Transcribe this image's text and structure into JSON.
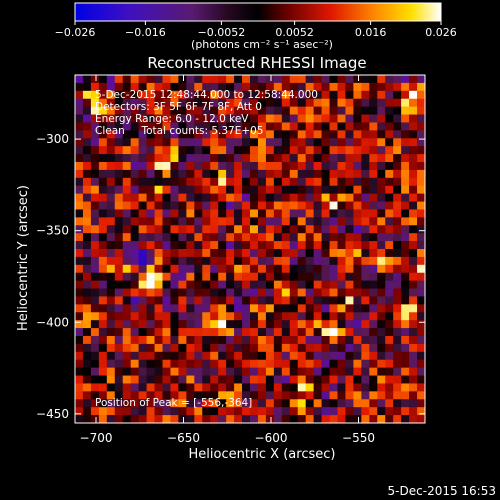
{
  "chart_data": {
    "type": "heatmap",
    "title": "Reconstructed RHESSI Image",
    "xlabel": "Heliocentric X (arcsec)",
    "ylabel": "Heliocentric Y (arcsec)",
    "xlim": [
      -712,
      -512
    ],
    "ylim": [
      -455,
      -265
    ],
    "xticks": [
      -700,
      -650,
      -600,
      -550
    ],
    "yticks": [
      -300,
      -350,
      -400,
      -450
    ],
    "colorbar": {
      "colormap": "RHESSI 'hot' (blue-purple-red-yellow-white)",
      "range": [
        -0.026,
        0.026
      ],
      "ticks": [
        "−0.026",
        "−0.016",
        "−0.0052",
        "0.0052",
        "0.016",
        "0.026"
      ],
      "unit_label": "(photons cm⁻² s⁻¹ asec⁻²)"
    },
    "annotations": [
      "5-Dec-2015 12:48:44.000 to 12:58:44.000",
      "Detectors: 3F 5F 6F 7F 8F, Att 0",
      "Energy Range: 6.0 - 12.0 keV",
      "Clean     Total counts: 5.37E+05"
    ],
    "peak_label": "Position of Peak = [-556,-364]",
    "peak": {
      "x": -556,
      "y": -364
    },
    "timestamp": "5-Dec-2015 16:53",
    "colors": {
      "background": "#000000",
      "foreground": "#ffffff",
      "cmap_stops": [
        "#0000e6",
        "#5a0fa0",
        "#5a1a55",
        "#000000",
        "#7a0000",
        "#e21a00",
        "#ff7a00",
        "#ffdf00",
        "#ffffff"
      ]
    }
  }
}
